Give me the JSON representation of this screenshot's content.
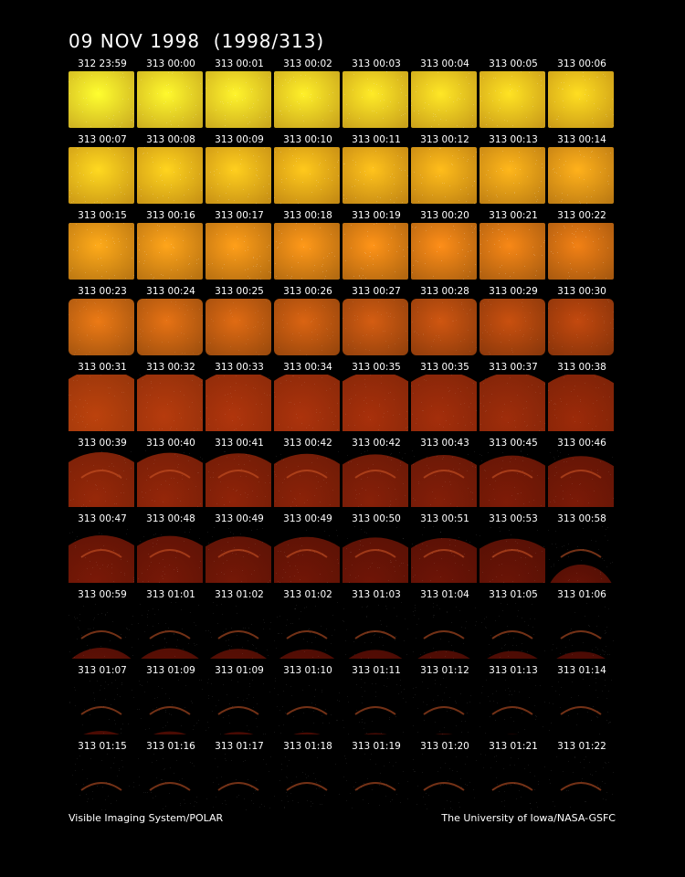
{
  "title": "09 NOV 1998  (1998/313)",
  "footer": {
    "left": "Visible Imaging System/POLAR",
    "right": "The University of Iowa/NASA-GSFC"
  },
  "colors": {
    "background": "#000000",
    "text": "#ffffff",
    "frame_bright": "#f7c21a",
    "frame_dim": "#3a0600"
  },
  "frames": [
    "312 23:59",
    "313 00:00",
    "313 00:01",
    "313 00:02",
    "313 00:03",
    "313 00:04",
    "313 00:05",
    "313 00:06",
    "313 00:07",
    "313 00:08",
    "313 00:09",
    "313 00:10",
    "313 00:11",
    "313 00:12",
    "313 00:13",
    "313 00:14",
    "313 00:15",
    "313 00:16",
    "313 00:17",
    "313 00:18",
    "313 00:19",
    "313 00:20",
    "313 00:21",
    "313 00:22",
    "313 00:23",
    "313 00:24",
    "313 00:25",
    "313 00:26",
    "313 00:27",
    "313 00:28",
    "313 00:29",
    "313 00:30",
    "313 00:31",
    "313 00:32",
    "313 00:33",
    "313 00:34",
    "313 00:35",
    "313 00:35",
    "313 00:37",
    "313 00:38",
    "313 00:39",
    "313 00:40",
    "313 00:41",
    "313 00:42",
    "313 00:42",
    "313 00:43",
    "313 00:45",
    "313 00:46",
    "313 00:47",
    "313 00:48",
    "313 00:49",
    "313 00:49",
    "313 00:50",
    "313 00:51",
    "313 00:53",
    "313 00:58",
    "313 00:59",
    "313 01:01",
    "313 01:02",
    "313 01:02",
    "313 01:03",
    "313 01:04",
    "313 01:05",
    "313 01:06",
    "313 01:07",
    "313 01:09",
    "313 01:09",
    "313 01:10",
    "313 01:11",
    "313 01:12",
    "313 01:13",
    "313 01:14",
    "313 01:15",
    "313 01:16",
    "313 01:17",
    "313 01:18",
    "313 01:19",
    "313 01:20",
    "313 01:21",
    "313 01:22"
  ]
}
